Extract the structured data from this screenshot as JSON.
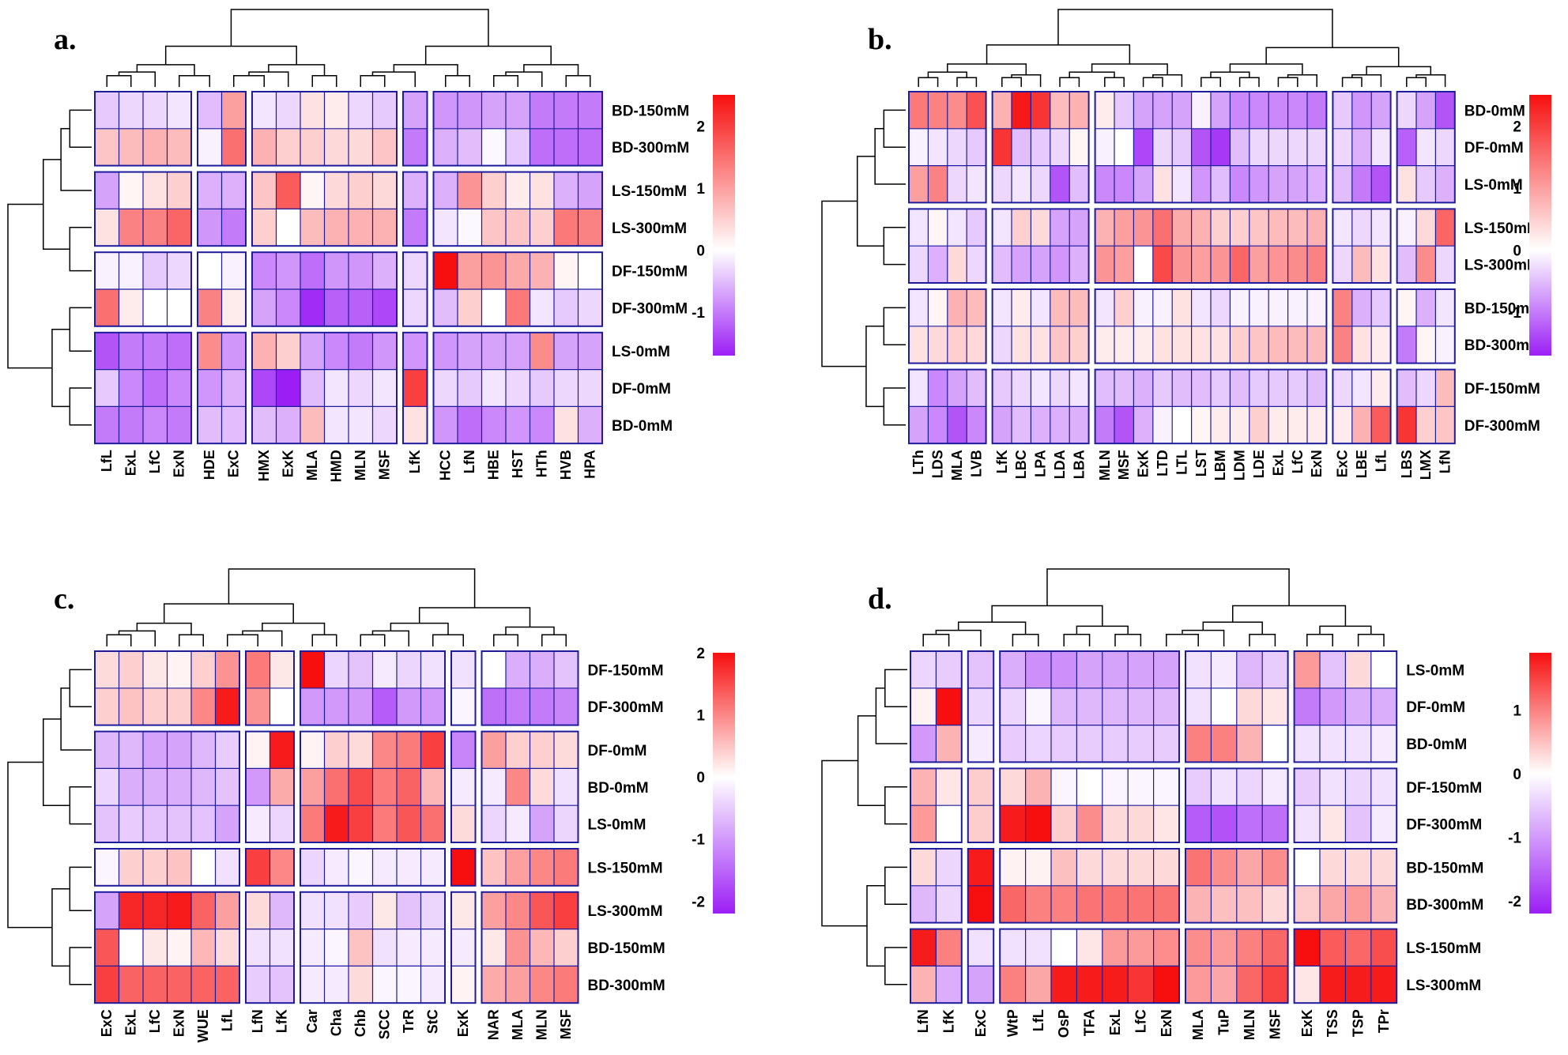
{
  "colors": {
    "low": "#9b1ff5",
    "mid": "#ffffff",
    "high": "#f70f0f",
    "grid": "#1c1c9c"
  },
  "chart_data": [
    {
      "type": "heatmap",
      "panel": "a.",
      "title": "",
      "rows": [
        "BD-150mM",
        "BD-300mM",
        "LS-150mM",
        "LS-300mM",
        "DF-150mM",
        "DF-300mM",
        "LS-0mM",
        "DF-0mM",
        "BD-0mM"
      ],
      "row_groups": [
        2,
        2,
        2,
        3
      ],
      "cols": [
        "LfL",
        "ExL",
        "LfC",
        "ExN",
        "HDE",
        "ExC",
        "HMX",
        "ExK",
        "MLA",
        "HMD",
        "MLN",
        "MSF",
        "LfK",
        "HCC",
        "LfN",
        "HBE",
        "HST",
        "HTh",
        "HVB",
        "HPA"
      ],
      "col_groups": [
        4,
        2,
        6,
        1,
        7
      ],
      "colorbar": {
        "min": -1.7,
        "max": 2.5,
        "ticks": [
          -1,
          0,
          1,
          2
        ]
      },
      "values": [
        [
          -0.4,
          -0.3,
          -0.3,
          -0.2,
          -0.5,
          1.0,
          -0.2,
          -0.3,
          0.3,
          0.2,
          -0.3,
          -0.4,
          -0.7,
          -0.8,
          -0.8,
          -0.7,
          -0.7,
          -1.0,
          -1.0,
          -1.0
        ],
        [
          0.6,
          0.7,
          0.8,
          0.7,
          -0.1,
          1.5,
          0.8,
          0.5,
          0.5,
          0.4,
          0.4,
          0.6,
          -1.0,
          -0.6,
          -0.5,
          -0.05,
          -0.4,
          -1.1,
          -1.1,
          -1.1
        ],
        [
          -0.7,
          0.1,
          0.3,
          0.5,
          -0.6,
          -0.6,
          0.6,
          1.7,
          0.1,
          0.4,
          0.5,
          0.4,
          -0.6,
          -0.6,
          1.1,
          0.5,
          0.2,
          0.3,
          -0.6,
          -0.7
        ],
        [
          0.3,
          1.3,
          1.3,
          1.6,
          -0.8,
          -1.0,
          0.5,
          0.0,
          0.7,
          0.8,
          0.8,
          0.8,
          -1.0,
          -0.2,
          -0.05,
          0.6,
          0.6,
          0.5,
          1.4,
          1.3
        ],
        [
          -0.1,
          -0.1,
          -0.4,
          -0.3,
          0.0,
          -0.1,
          -0.9,
          -0.8,
          -1.1,
          -0.8,
          -0.8,
          -0.6,
          -0.3,
          2.5,
          1.0,
          1.1,
          0.9,
          0.8,
          0.1,
          0.0
        ],
        [
          1.5,
          0.2,
          0.0,
          0.0,
          1.3,
          0.2,
          -0.7,
          -0.9,
          -1.6,
          -1.2,
          -1.2,
          -1.4,
          -0.3,
          -0.5,
          0.5,
          0.0,
          1.4,
          -0.2,
          -0.4,
          -0.3
        ],
        [
          -1.3,
          -1.0,
          -1.0,
          -1.1,
          1.2,
          -0.8,
          0.8,
          0.5,
          -0.7,
          -0.9,
          -1.0,
          -0.8,
          -0.8,
          -0.8,
          -0.7,
          -0.7,
          -0.7,
          1.2,
          -0.7,
          -0.7
        ],
        [
          -0.4,
          -0.9,
          -1.1,
          -0.9,
          -0.8,
          -0.6,
          -1.4,
          -1.7,
          -0.5,
          -0.2,
          -0.3,
          -0.2,
          2.0,
          -0.3,
          -0.4,
          -0.2,
          -0.3,
          -0.4,
          -0.3,
          -0.3
        ],
        [
          -1.0,
          -1.0,
          -0.9,
          -1.0,
          -0.5,
          -0.5,
          -0.5,
          -0.6,
          0.7,
          -0.2,
          -0.2,
          -0.3,
          0.3,
          -0.8,
          -1.1,
          -0.9,
          -0.8,
          -0.9,
          0.3,
          -0.6
        ]
      ]
    },
    {
      "type": "heatmap",
      "panel": "b.",
      "title": "",
      "rows": [
        "BD-0mM",
        "DF-0mM",
        "LS-0mM",
        "LS-150mM",
        "LS-300mM",
        "BD-150mM",
        "BD-300mM",
        "DF-150mM",
        "DF-300mM"
      ],
      "row_groups": [
        3,
        2,
        2,
        2
      ],
      "cols": [
        "LTh",
        "LDS",
        "MLA",
        "LVB",
        "LfK",
        "LBC",
        "LPA",
        "LDA",
        "LBA",
        "MLN",
        "MSF",
        "ExK",
        "LTD",
        "LTL",
        "LST",
        "LBM",
        "LDM",
        "LDE",
        "ExL",
        "LfC",
        "ExN",
        "ExC",
        "LBE",
        "LfL",
        "LBS",
        "LMX",
        "LfN"
      ],
      "col_groups": [
        4,
        5,
        12,
        3,
        3
      ],
      "colorbar": {
        "min": -1.7,
        "max": 2.5,
        "ticks": [
          -1,
          0,
          1,
          2
        ]
      },
      "values": [
        [
          1.4,
          1.3,
          1.2,
          1.8,
          0.8,
          2.4,
          2.1,
          0.7,
          0.8,
          0.2,
          -0.4,
          -0.7,
          -0.7,
          -0.7,
          -0.1,
          -0.7,
          -0.9,
          -0.9,
          -0.9,
          -0.9,
          -1.0,
          -0.4,
          -0.8,
          -0.7,
          -0.3,
          -0.7,
          -1.3
        ],
        [
          -0.1,
          -0.2,
          -0.3,
          -0.4,
          2.1,
          -0.5,
          -0.4,
          -0.3,
          0.1,
          -0.1,
          0.0,
          -1.4,
          -0.3,
          -0.4,
          -1.3,
          -1.5,
          -0.5,
          -0.3,
          -0.3,
          -0.3,
          -0.3,
          -0.3,
          -0.6,
          -0.2,
          -1.2,
          -0.2,
          -0.3
        ],
        [
          1.0,
          1.3,
          -0.3,
          -0.2,
          -0.3,
          -0.2,
          -0.3,
          -1.3,
          -0.5,
          -0.9,
          -0.9,
          -0.7,
          0.3,
          -0.2,
          -0.8,
          -0.5,
          -0.9,
          -0.8,
          -0.7,
          -0.7,
          -0.6,
          -0.5,
          -1.0,
          -1.3,
          0.3,
          -0.4,
          -0.6
        ],
        [
          -0.2,
          0.1,
          -0.2,
          -0.4,
          -0.2,
          0.5,
          0.4,
          -0.7,
          -0.7,
          0.8,
          1.0,
          1.1,
          1.5,
          0.9,
          0.8,
          0.5,
          0.5,
          0.6,
          0.7,
          0.7,
          0.8,
          -0.2,
          -0.3,
          -0.2,
          -0.1,
          0.4,
          1.6
        ],
        [
          -0.3,
          -0.6,
          0.4,
          -0.3,
          -0.5,
          -0.7,
          -0.7,
          -0.8,
          -0.6,
          1.1,
          1.0,
          0.0,
          1.9,
          1.1,
          1.0,
          1.1,
          1.6,
          1.0,
          1.1,
          1.2,
          1.3,
          -0.3,
          0.7,
          0.3,
          -0.5,
          1.2,
          -0.3
        ],
        [
          -0.2,
          0.1,
          0.8,
          0.7,
          -0.2,
          0.2,
          -0.2,
          0.7,
          0.7,
          -0.2,
          0.5,
          -0.1,
          -0.1,
          0.3,
          -0.2,
          -0.3,
          -0.1,
          -0.1,
          -0.1,
          -0.1,
          -0.1,
          1.3,
          -0.6,
          -0.4,
          0.1,
          -0.6,
          -0.2
        ],
        [
          0.3,
          0.4,
          0.5,
          0.4,
          -0.3,
          0.3,
          0.3,
          0.6,
          0.5,
          0.2,
          0.2,
          0.2,
          0.3,
          0.3,
          0.3,
          0.3,
          0.5,
          0.6,
          0.7,
          0.7,
          0.7,
          1.3,
          0.3,
          0.2,
          -1.0,
          0.1,
          -0.1
        ],
        [
          -0.2,
          -0.9,
          -0.7,
          -0.5,
          -0.4,
          -0.3,
          -0.2,
          -0.3,
          -0.2,
          -0.5,
          -0.5,
          -0.6,
          -0.4,
          -0.5,
          -0.5,
          -0.4,
          -0.5,
          -0.4,
          -0.4,
          -0.4,
          -0.5,
          -0.3,
          -0.2,
          0.2,
          -0.5,
          -0.3,
          0.7
        ],
        [
          -0.7,
          -0.9,
          -1.3,
          -0.9,
          -0.7,
          -0.5,
          -0.6,
          -0.6,
          -0.6,
          -1.0,
          -1.3,
          -0.6,
          -0.1,
          0.0,
          0.1,
          0.2,
          0.2,
          0.5,
          0.2,
          0.2,
          0.2,
          0.2,
          0.8,
          1.7,
          2.1,
          0.5,
          0.6
        ]
      ]
    },
    {
      "type": "heatmap",
      "panel": "c.",
      "title": "",
      "rows": [
        "DF-150mM",
        "DF-300mM",
        "DF-0mM",
        "BD-0mM",
        "LS-0mM",
        "LS-150mM",
        "LS-300mM",
        "BD-150mM",
        "BD-300mM"
      ],
      "row_groups": [
        2,
        3,
        1,
        3
      ],
      "cols": [
        "ExC",
        "ExL",
        "LfC",
        "ExN",
        "WUE",
        "LfL",
        "LfN",
        "LfK",
        "Car",
        "Cha",
        "Chb",
        "SCC",
        "TrR",
        "StC",
        "ExK",
        "NAR",
        "MLA",
        "MLN",
        "MSF"
      ],
      "col_groups": [
        6,
        2,
        6,
        1,
        4
      ],
      "colorbar": {
        "min": -2.2,
        "max": 2.0,
        "ticks": [
          -2,
          -1,
          0,
          1,
          2
        ]
      },
      "values": [
        [
          0.3,
          0.4,
          0.2,
          0.1,
          0.4,
          0.9,
          1.1,
          0.2,
          2.0,
          -0.4,
          -0.6,
          -0.2,
          -0.4,
          -0.3,
          -0.3,
          0.0,
          -0.8,
          -0.8,
          -0.6
        ],
        [
          0.4,
          0.5,
          0.4,
          0.4,
          1.0,
          1.9,
          0.9,
          0.0,
          -1.0,
          -1.0,
          -1.0,
          -1.6,
          -1.0,
          -1.0,
          -0.1,
          -1.4,
          -1.3,
          -1.3,
          -1.2
        ],
        [
          -0.7,
          -0.7,
          -0.9,
          -0.9,
          -0.7,
          -0.5,
          0.1,
          1.9,
          0.1,
          0.4,
          0.3,
          1.0,
          1.1,
          1.6,
          -1.2,
          0.8,
          0.4,
          0.4,
          0.3
        ],
        [
          -0.4,
          -0.8,
          -0.8,
          -0.8,
          -0.7,
          -0.6,
          -1.0,
          0.7,
          0.8,
          1.2,
          1.5,
          1.1,
          1.3,
          0.6,
          -0.2,
          -0.2,
          1.0,
          0.3,
          -0.3
        ],
        [
          -0.6,
          -0.5,
          -0.6,
          -0.6,
          -0.6,
          -0.9,
          -0.2,
          -0.4,
          1.1,
          1.9,
          1.6,
          1.1,
          1.4,
          1.2,
          0.3,
          -0.4,
          -0.2,
          -0.9,
          -0.4
        ],
        [
          -0.1,
          0.4,
          0.4,
          0.5,
          0.0,
          -0.3,
          1.6,
          1.0,
          -0.4,
          -0.2,
          -0.1,
          -0.2,
          -0.2,
          -0.2,
          2.0,
          0.5,
          0.8,
          1.0,
          1.1
        ],
        [
          -0.9,
          1.8,
          1.8,
          1.9,
          1.3,
          0.8,
          0.3,
          -0.7,
          -0.3,
          -0.3,
          -0.5,
          0.2,
          -0.6,
          -0.4,
          0.2,
          0.8,
          1.0,
          1.4,
          1.6
        ],
        [
          1.4,
          0.0,
          0.2,
          0.1,
          0.6,
          0.3,
          -0.3,
          -0.3,
          -0.2,
          -0.1,
          0.5,
          -0.3,
          -0.2,
          -0.2,
          -0.2,
          0.2,
          0.9,
          0.6,
          0.4
        ],
        [
          1.6,
          1.3,
          1.3,
          1.3,
          1.3,
          1.3,
          -0.5,
          -0.6,
          -0.2,
          -0.2,
          0.3,
          -0.1,
          -0.1,
          -0.2,
          0.1,
          0.7,
          0.8,
          1.0,
          1.1
        ]
      ]
    },
    {
      "type": "heatmap",
      "panel": "d.",
      "title": "",
      "rows": [
        "LS-0mM",
        "DF-0mM",
        "BD-0mM",
        "DF-150mM",
        "DF-300mM",
        "BD-150mM",
        "BD-300mM",
        "LS-150mM",
        "LS-300mM"
      ],
      "row_groups": [
        3,
        2,
        2,
        2
      ],
      "cols": [
        "LfN",
        "LfK",
        "ExC",
        "WtP",
        "LfL",
        "OsP",
        "TFA",
        "ExL",
        "LfC",
        "ExN",
        "MLA",
        "TuP",
        "MLN",
        "MSF",
        "ExK",
        "TSS",
        "TSP",
        "TPr"
      ],
      "col_groups": [
        2,
        1,
        7,
        4,
        4
      ],
      "colorbar": {
        "min": -2.2,
        "max": 1.9,
        "ticks": [
          -2,
          -1,
          0,
          1
        ]
      },
      "values": [
        [
          -0.4,
          -0.5,
          -0.6,
          -0.8,
          -1.1,
          -1.1,
          -0.9,
          -0.9,
          -0.9,
          -0.9,
          -0.3,
          -0.2,
          -0.7,
          -0.5,
          0.8,
          -0.6,
          0.3,
          0.0
        ],
        [
          0.1,
          1.9,
          -0.4,
          -0.4,
          -0.1,
          -0.7,
          -0.7,
          -0.7,
          -0.7,
          -0.7,
          -0.3,
          0.0,
          0.3,
          0.2,
          -1.3,
          -1.0,
          -0.8,
          -0.8
        ],
        [
          -1.0,
          0.6,
          -0.2,
          -0.5,
          -0.4,
          -0.5,
          -0.5,
          -0.5,
          -0.5,
          -0.5,
          1.0,
          1.0,
          0.6,
          0.0,
          -0.3,
          -0.3,
          -0.3,
          -0.2
        ],
        [
          0.6,
          0.2,
          0.4,
          0.3,
          0.6,
          -0.1,
          0.0,
          -0.1,
          -0.1,
          -0.1,
          -0.5,
          -0.3,
          -0.4,
          -0.2,
          -0.5,
          -0.3,
          -0.4,
          -0.3
        ],
        [
          0.8,
          0.0,
          0.4,
          1.8,
          1.9,
          0.4,
          0.9,
          0.3,
          0.3,
          0.2,
          -1.6,
          -1.7,
          -1.4,
          -1.4,
          -0.3,
          0.2,
          -0.6,
          -0.2
        ],
        [
          0.3,
          -0.4,
          1.8,
          0.1,
          0.1,
          0.5,
          0.3,
          0.3,
          0.3,
          0.3,
          1.1,
          0.9,
          0.7,
          0.9,
          0.0,
          0.3,
          0.3,
          0.3
        ],
        [
          -0.7,
          -0.4,
          1.9,
          1.2,
          1.0,
          1.0,
          1.1,
          1.1,
          1.1,
          1.1,
          0.6,
          0.5,
          0.5,
          0.3,
          0.4,
          0.7,
          0.8,
          0.6
        ],
        [
          1.8,
          1.0,
          -0.3,
          -0.3,
          -0.3,
          0.0,
          0.2,
          0.8,
          0.8,
          0.9,
          0.9,
          0.8,
          1.0,
          1.2,
          1.9,
          1.3,
          1.2,
          1.4
        ],
        [
          0.6,
          -0.8,
          -0.9,
          1.0,
          0.7,
          1.8,
          1.8,
          1.8,
          1.6,
          1.9,
          0.8,
          0.7,
          1.2,
          1.5,
          0.2,
          1.8,
          1.8,
          1.8
        ]
      ]
    }
  ]
}
